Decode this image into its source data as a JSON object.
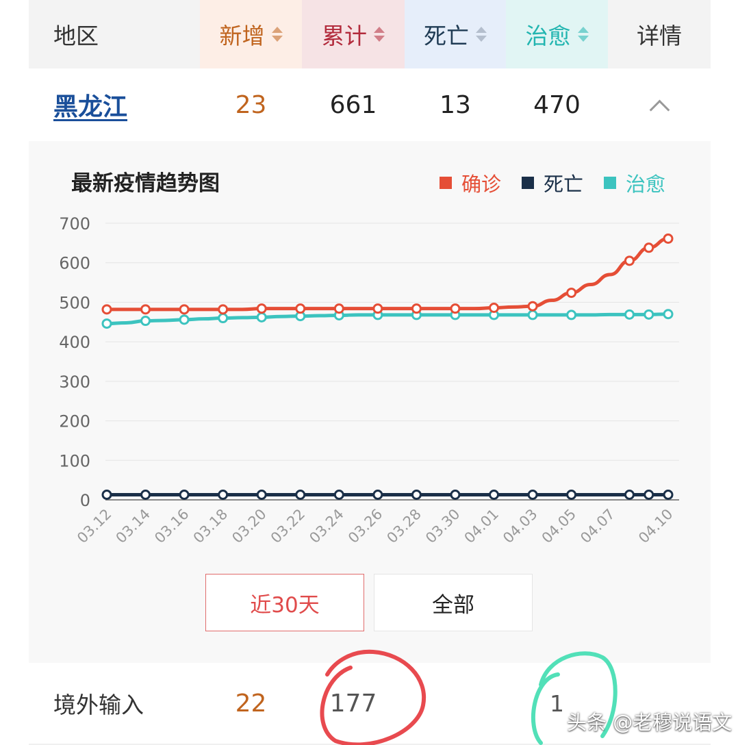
{
  "colors": {
    "confirmed": "#e54e36",
    "death": "#1a2f48",
    "cured": "#3cc3bf",
    "new": "#c0641e",
    "link": "#1a4f9a",
    "circle_red": "#e84a4f",
    "circle_green": "#52e0b8"
  },
  "table": {
    "header": {
      "region": "地区",
      "new": "新增",
      "total": "累计",
      "death": "死亡",
      "cured": "治愈",
      "detail": "详情"
    },
    "province_row": {
      "name": "黑龙江",
      "new": "23",
      "total": "661",
      "death": "13",
      "cured": "470"
    },
    "import_row": {
      "label": "境外输入",
      "new": "22",
      "total": "177",
      "cured": "1"
    }
  },
  "chart": {
    "title": "最新疫情趋势图",
    "legend": [
      "确诊",
      "死亡",
      "治愈"
    ]
  },
  "chart_data": {
    "type": "line",
    "title": "最新疫情趋势图",
    "x": [
      "03.12",
      "03.13",
      "03.14",
      "03.15",
      "03.16",
      "03.17",
      "03.18",
      "03.19",
      "03.20",
      "03.21",
      "03.22",
      "03.23",
      "03.24",
      "03.25",
      "03.26",
      "03.27",
      "03.28",
      "03.29",
      "03.30",
      "03.31",
      "04.01",
      "04.02",
      "04.03",
      "04.04",
      "04.05",
      "04.06",
      "04.07",
      "04.08",
      "04.09",
      "04.10"
    ],
    "x_tick_labels": [
      "03.12",
      "03.14",
      "03.16",
      "03.18",
      "03.20",
      "03.22",
      "03.24",
      "03.26",
      "03.28",
      "03.30",
      "04.01",
      "04.03",
      "04.05",
      "04.07",
      "04.10"
    ],
    "ylim": [
      0,
      700
    ],
    "y_ticks": [
      0,
      100,
      200,
      300,
      400,
      500,
      600,
      700
    ],
    "grid": true,
    "legend_position": "top-right",
    "series": [
      {
        "name": "确诊",
        "values": [
          482,
          482,
          482,
          482,
          482,
          482,
          482,
          482,
          484,
          484,
          484,
          484,
          484,
          484,
          484,
          484,
          484,
          484,
          484,
          484,
          486,
          488,
          490,
          505,
          524,
          545,
          570,
          605,
          638,
          661
        ]
      },
      {
        "name": "死亡",
        "values": [
          13,
          13,
          13,
          13,
          13,
          13,
          13,
          13,
          13,
          13,
          13,
          13,
          13,
          13,
          13,
          13,
          13,
          13,
          13,
          13,
          13,
          13,
          13,
          13,
          13,
          13,
          13,
          13,
          13,
          13
        ]
      },
      {
        "name": "治愈",
        "values": [
          446,
          448,
          453,
          454,
          456,
          458,
          460,
          461,
          462,
          464,
          465,
          466,
          467,
          468,
          468,
          468,
          468,
          468,
          468,
          468,
          468,
          468,
          468,
          468,
          468,
          468,
          469,
          469,
          469,
          470
        ]
      }
    ],
    "marker_indices": [
      0,
      2,
      4,
      6,
      8,
      10,
      12,
      14,
      16,
      18,
      20,
      22,
      24,
      27,
      28,
      29
    ]
  },
  "buttons": {
    "recent30": "近30天",
    "all": "全部"
  },
  "watermark": "头条 @老穆说语文"
}
